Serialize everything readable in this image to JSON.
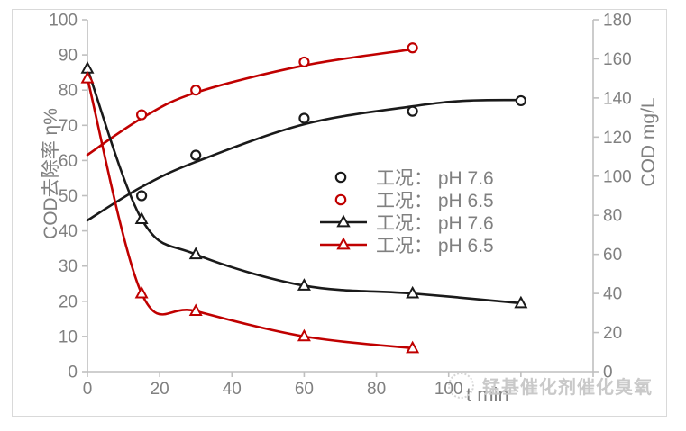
{
  "watermark": {
    "logo": "circular-seal",
    "text": "锰基催化剂催化臭氧"
  },
  "chart_data": {
    "type": "scatter",
    "title": "",
    "xlabel": "t min",
    "ylabel_left": "COD去除率 η%",
    "ylabel_right": "COD mg/L",
    "xlim": [
      0,
      140
    ],
    "ylim_left": [
      0,
      100
    ],
    "ylim_right": [
      0,
      180
    ],
    "x_tick_labels": [
      0,
      20,
      40,
      60,
      80,
      100
    ],
    "x_tick_marks": [
      0,
      20,
      40,
      60,
      80,
      100,
      120,
      140
    ],
    "y_ticks_left": [
      0,
      10,
      20,
      30,
      40,
      50,
      60,
      70,
      80,
      90,
      100
    ],
    "y_ticks_right": [
      0,
      20,
      40,
      60,
      80,
      100,
      120,
      140,
      160,
      180
    ],
    "grid": false,
    "legend_position": "center-right",
    "colors": {
      "black": "#1a1a1a",
      "red": "#c00000",
      "axis_line": "#bfbfbf",
      "tick_text": "#808080",
      "border": "#d9d9d9"
    },
    "series": [
      {
        "label": "工况： pH 7.6",
        "axis": "left",
        "unit": "%",
        "marker": "circle",
        "color_key": "black",
        "style": "scatter-with-trend",
        "points": [
          [
            15,
            50
          ],
          [
            30,
            61.5
          ],
          [
            60,
            72
          ],
          [
            90,
            74
          ],
          [
            120,
            77
          ]
        ],
        "trend": [
          [
            0,
            43
          ],
          [
            15,
            52.5
          ],
          [
            30,
            59.6
          ],
          [
            60,
            70.3
          ],
          [
            90,
            75.4
          ],
          [
            105,
            77
          ],
          [
            120,
            77.2
          ]
        ]
      },
      {
        "label": "工况： pH 6.5",
        "axis": "left",
        "unit": "%",
        "marker": "circle",
        "color_key": "red",
        "style": "scatter-with-trend",
        "points": [
          [
            15,
            73
          ],
          [
            30,
            80
          ],
          [
            60,
            88
          ],
          [
            90,
            92
          ]
        ],
        "trend": [
          [
            0,
            61.6
          ],
          [
            15,
            72
          ],
          [
            30,
            79.3
          ],
          [
            60,
            87
          ],
          [
            90,
            91.6
          ]
        ]
      },
      {
        "label": "工况： pH 7.6",
        "axis": "right",
        "unit": "mg/L",
        "marker": "triangle",
        "color_key": "black",
        "style": "smooth-line",
        "points": [
          [
            0,
            155
          ],
          [
            15,
            78
          ],
          [
            30,
            60
          ],
          [
            60,
            44
          ],
          [
            90,
            40
          ],
          [
            120,
            35
          ]
        ]
      },
      {
        "label": "工况： pH 6.5",
        "axis": "right",
        "unit": "mg/L",
        "marker": "triangle",
        "color_key": "red",
        "style": "smooth-line",
        "points": [
          [
            0,
            150
          ],
          [
            15,
            40
          ],
          [
            30,
            31
          ],
          [
            60,
            18
          ],
          [
            90,
            12
          ]
        ]
      }
    ]
  }
}
